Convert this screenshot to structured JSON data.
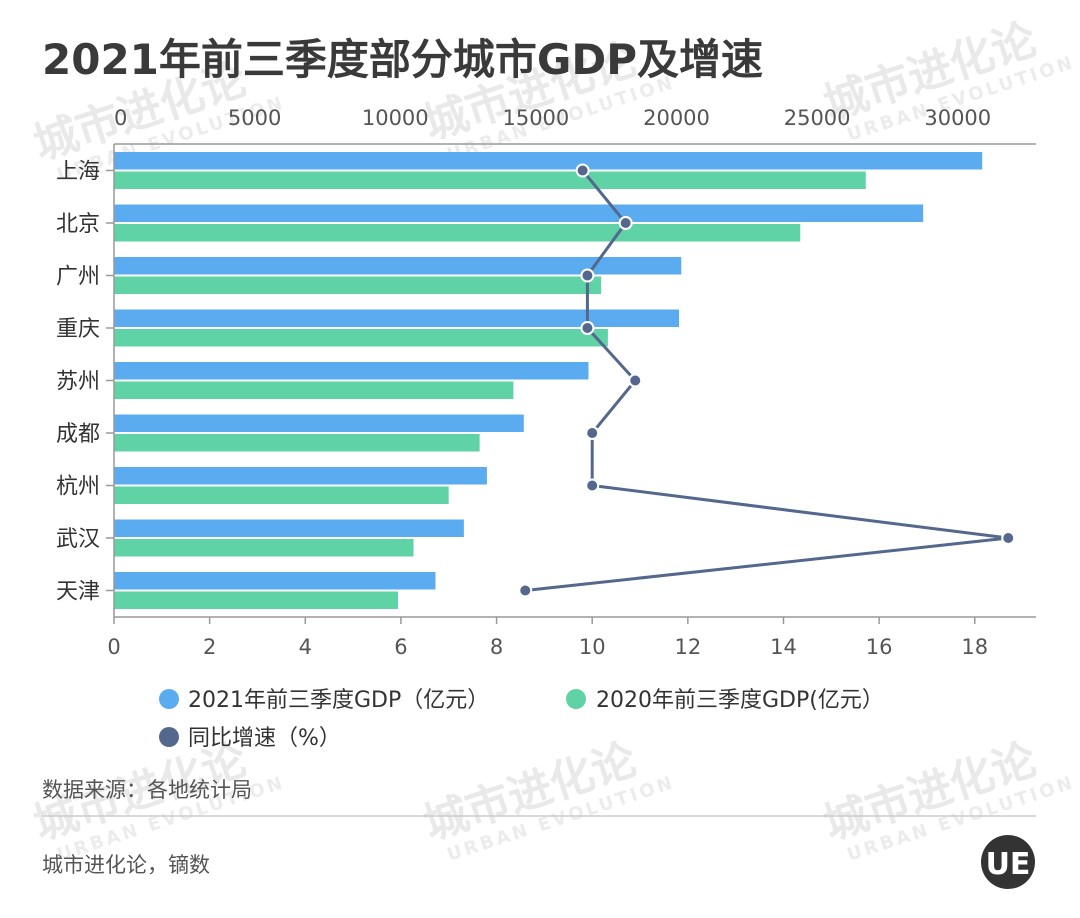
{
  "chart_data": {
    "type": "bar",
    "title": "2021年前三季度部分城市GDP及增速",
    "orientation": "horizontal",
    "categories": [
      "上海",
      "北京",
      "广州",
      "重庆",
      "苏州",
      "成都",
      "杭州",
      "武汉",
      "天津"
    ],
    "series": [
      {
        "name": "2021年前三季度GDP（亿元）",
        "axis": "top",
        "type": "bar",
        "color": "#5aabf0",
        "values": [
          30870,
          28770,
          20170,
          20090,
          16870,
          14570,
          13260,
          12440,
          11430
        ]
      },
      {
        "name": "2020年前三季度GDP(亿元）",
        "axis": "top",
        "type": "bar",
        "color": "#5fd3a6",
        "values": [
          26730,
          24400,
          17320,
          17560,
          14200,
          13000,
          11900,
          10650,
          10100
        ]
      },
      {
        "name": "同比增速（%）",
        "axis": "bottom",
        "type": "line",
        "color": "#54688e",
        "values": [
          9.8,
          10.7,
          9.9,
          9.9,
          10.9,
          10.0,
          10.0,
          18.7,
          8.6
        ]
      }
    ],
    "top_axis": {
      "min": 0,
      "max": 32000,
      "ticks": [
        0,
        5000,
        10000,
        15000,
        20000,
        25000,
        30000
      ]
    },
    "bottom_axis": {
      "min": 0,
      "max": 19.5,
      "ticks": [
        0,
        2,
        4,
        6,
        8,
        10,
        12,
        14,
        16,
        18
      ]
    },
    "legend_position": "bottom"
  },
  "footer": {
    "source": "数据来源：各地统计局",
    "credit": "城市进化论，镝数",
    "logo_text": "UE"
  },
  "watermark": {
    "main": "城市进化论",
    "sub": "URBAN EVOLUTION"
  },
  "colors": {
    "bar2021": "#5aabf0",
    "bar2020": "#5fd3a6",
    "line": "#54688e",
    "axis": "#999999",
    "divider": "#cccccc"
  }
}
